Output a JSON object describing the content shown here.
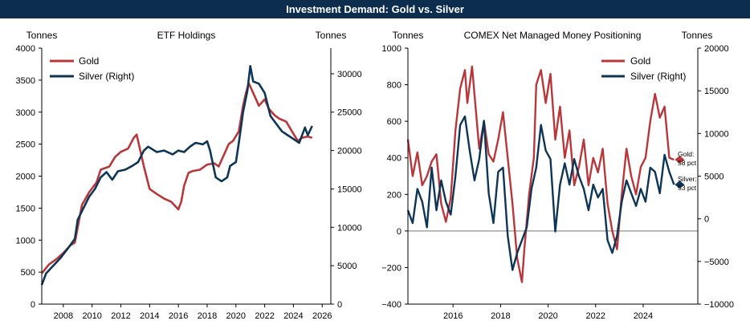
{
  "page_title": "Investment Demand: Gold vs. Silver",
  "colors": {
    "banner": "#0d2d4f",
    "gold": "#b8373b",
    "silver": "#0d3556",
    "zero_line": "#777777"
  },
  "chart_data": [
    {
      "type": "line",
      "title": "ETF Holdings",
      "ylabel_left": "Tonnes",
      "ylabel_right": "Tonnes",
      "xlim": [
        2006.5,
        2026.6
      ],
      "ylim_left": [
        0,
        4000
      ],
      "ylim_right": [
        0,
        33333
      ],
      "x_ticks": [
        2008,
        2010,
        2012,
        2014,
        2016,
        2018,
        2020,
        2022,
        2024,
        2026
      ],
      "y_ticks_left": [
        0,
        500,
        1000,
        1500,
        2000,
        2500,
        3000,
        3500,
        4000
      ],
      "y_ticks_right": [
        0,
        5000,
        10000,
        15000,
        20000,
        25000,
        30000
      ],
      "legend_position": "top-left",
      "series": [
        {
          "name": "Gold",
          "axis": "left",
          "color_key": "gold",
          "points": [
            [
              2006.5,
              480
            ],
            [
              2007.0,
              620
            ],
            [
              2007.5,
              700
            ],
            [
              2008.0,
              800
            ],
            [
              2008.5,
              920
            ],
            [
              2008.8,
              960
            ],
            [
              2009.0,
              1200
            ],
            [
              2009.3,
              1550
            ],
            [
              2009.8,
              1750
            ],
            [
              2010.3,
              1900
            ],
            [
              2010.6,
              2100
            ],
            [
              2011.2,
              2150
            ],
            [
              2011.6,
              2300
            ],
            [
              2012.0,
              2380
            ],
            [
              2012.5,
              2430
            ],
            [
              2012.9,
              2600
            ],
            [
              2013.1,
              2650
            ],
            [
              2013.3,
              2450
            ],
            [
              2013.6,
              2150
            ],
            [
              2014.0,
              1800
            ],
            [
              2014.5,
              1720
            ],
            [
              2015.0,
              1650
            ],
            [
              2015.5,
              1600
            ],
            [
              2016.0,
              1480
            ],
            [
              2016.2,
              1600
            ],
            [
              2016.4,
              1850
            ],
            [
              2016.7,
              2050
            ],
            [
              2017.0,
              2080
            ],
            [
              2017.5,
              2100
            ],
            [
              2018.0,
              2180
            ],
            [
              2018.5,
              2200
            ],
            [
              2018.8,
              2150
            ],
            [
              2019.2,
              2350
            ],
            [
              2019.5,
              2500
            ],
            [
              2019.8,
              2550
            ],
            [
              2020.2,
              2700
            ],
            [
              2020.5,
              3100
            ],
            [
              2020.7,
              3300
            ],
            [
              2020.9,
              3450
            ],
            [
              2021.3,
              3250
            ],
            [
              2021.6,
              3100
            ],
            [
              2022.0,
              3200
            ],
            [
              2022.3,
              3050
            ],
            [
              2022.7,
              2950
            ],
            [
              2023.0,
              2900
            ],
            [
              2023.5,
              2850
            ],
            [
              2023.9,
              2700
            ],
            [
              2024.3,
              2550
            ],
            [
              2024.6,
              2600
            ],
            [
              2025.0,
              2620
            ],
            [
              2025.3,
              2600
            ]
          ]
        },
        {
          "name": "Silver (Right)",
          "axis": "right",
          "color_key": "silver",
          "points": [
            [
              2006.5,
              2500
            ],
            [
              2006.8,
              4000
            ],
            [
              2007.3,
              5000
            ],
            [
              2007.8,
              6000
            ],
            [
              2008.3,
              7200
            ],
            [
              2008.8,
              8500
            ],
            [
              2009.0,
              11000
            ],
            [
              2009.4,
              12500
            ],
            [
              2009.8,
              14000
            ],
            [
              2010.2,
              15000
            ],
            [
              2010.6,
              16500
            ],
            [
              2011.0,
              17200
            ],
            [
              2011.4,
              16200
            ],
            [
              2011.8,
              17300
            ],
            [
              2012.3,
              17500
            ],
            [
              2012.8,
              18000
            ],
            [
              2013.2,
              18500
            ],
            [
              2013.6,
              20000
            ],
            [
              2013.9,
              20500
            ],
            [
              2014.5,
              19800
            ],
            [
              2015.0,
              20000
            ],
            [
              2015.6,
              19500
            ],
            [
              2016.0,
              20000
            ],
            [
              2016.4,
              19800
            ],
            [
              2016.8,
              20500
            ],
            [
              2017.2,
              21000
            ],
            [
              2017.7,
              20800
            ],
            [
              2018.0,
              21200
            ],
            [
              2018.2,
              20000
            ],
            [
              2018.6,
              16500
            ],
            [
              2019.0,
              16000
            ],
            [
              2019.4,
              16500
            ],
            [
              2019.6,
              18000
            ],
            [
              2020.0,
              18500
            ],
            [
              2020.2,
              21000
            ],
            [
              2020.5,
              25000
            ],
            [
              2020.8,
              27800
            ],
            [
              2021.0,
              31000
            ],
            [
              2021.2,
              29000
            ],
            [
              2021.6,
              28700
            ],
            [
              2022.0,
              27500
            ],
            [
              2022.4,
              24500
            ],
            [
              2022.8,
              23500
            ],
            [
              2023.2,
              22500
            ],
            [
              2023.6,
              22000
            ],
            [
              2024.0,
              21500
            ],
            [
              2024.4,
              21000
            ],
            [
              2024.8,
              23000
            ],
            [
              2025.0,
              22000
            ],
            [
              2025.3,
              23200
            ]
          ]
        }
      ]
    },
    {
      "type": "line",
      "title": "COMEX Net Managed Money Positioning",
      "ylabel_left": "Tonnes",
      "ylabel_right": "Tonnes",
      "xlim": [
        2014.1,
        2026.3
      ],
      "ylim_left": [
        -400,
        1000
      ],
      "ylim_right": [
        -10000,
        20000
      ],
      "x_ticks": [
        2016,
        2018,
        2020,
        2022,
        2024
      ],
      "y_ticks_left": [
        -400,
        -200,
        0,
        200,
        400,
        600,
        800,
        1000
      ],
      "y_ticks_right": [
        -10000,
        -5000,
        0,
        5000,
        10000,
        15000,
        20000
      ],
      "legend_position": "top-right",
      "zero_line": 0,
      "series": [
        {
          "name": "Gold",
          "axis": "left",
          "color_key": "gold",
          "end_label": "Gold: 58 pct",
          "points": [
            [
              2014.1,
              500
            ],
            [
              2014.3,
              300
            ],
            [
              2014.5,
              430
            ],
            [
              2014.7,
              250
            ],
            [
              2014.9,
              300
            ],
            [
              2015.1,
              380
            ],
            [
              2015.3,
              420
            ],
            [
              2015.5,
              150
            ],
            [
              2015.7,
              50
            ],
            [
              2015.9,
              180
            ],
            [
              2016.1,
              550
            ],
            [
              2016.3,
              780
            ],
            [
              2016.5,
              880
            ],
            [
              2016.6,
              700
            ],
            [
              2016.8,
              900
            ],
            [
              2017.0,
              600
            ],
            [
              2017.1,
              450
            ],
            [
              2017.3,
              600
            ],
            [
              2017.5,
              420
            ],
            [
              2017.7,
              380
            ],
            [
              2017.9,
              500
            ],
            [
              2018.1,
              650
            ],
            [
              2018.3,
              400
            ],
            [
              2018.5,
              150
            ],
            [
              2018.7,
              -150
            ],
            [
              2018.9,
              -280
            ],
            [
              2019.0,
              -100
            ],
            [
              2019.2,
              200
            ],
            [
              2019.4,
              400
            ],
            [
              2019.5,
              800
            ],
            [
              2019.7,
              880
            ],
            [
              2019.9,
              700
            ],
            [
              2020.1,
              860
            ],
            [
              2020.3,
              500
            ],
            [
              2020.5,
              680
            ],
            [
              2020.7,
              400
            ],
            [
              2020.9,
              550
            ],
            [
              2021.1,
              250
            ],
            [
              2021.3,
              350
            ],
            [
              2021.5,
              500
            ],
            [
              2021.7,
              250
            ],
            [
              2021.9,
              400
            ],
            [
              2022.1,
              320
            ],
            [
              2022.3,
              450
            ],
            [
              2022.5,
              150
            ],
            [
              2022.7,
              0
            ],
            [
              2022.9,
              -100
            ],
            [
              2023.1,
              200
            ],
            [
              2023.3,
              450
            ],
            [
              2023.5,
              300
            ],
            [
              2023.7,
              200
            ],
            [
              2023.9,
              350
            ],
            [
              2024.1,
              400
            ],
            [
              2024.3,
              600
            ],
            [
              2024.5,
              750
            ],
            [
              2024.7,
              620
            ],
            [
              2024.9,
              680
            ],
            [
              2025.1,
              400
            ],
            [
              2025.3,
              390
            ]
          ]
        },
        {
          "name": "Silver (Right)",
          "axis": "right",
          "color_key": "silver",
          "end_label": "Silver: 53 pct",
          "points": [
            [
              2014.1,
              1000
            ],
            [
              2014.3,
              -500
            ],
            [
              2014.5,
              3500
            ],
            [
              2014.7,
              2000
            ],
            [
              2014.9,
              -1000
            ],
            [
              2015.1,
              6000
            ],
            [
              2015.3,
              1000
            ],
            [
              2015.5,
              4500
            ],
            [
              2015.7,
              2000
            ],
            [
              2015.9,
              500
            ],
            [
              2016.1,
              5000
            ],
            [
              2016.3,
              11000
            ],
            [
              2016.5,
              12000
            ],
            [
              2016.7,
              8000
            ],
            [
              2016.9,
              4500
            ],
            [
              2017.1,
              7000
            ],
            [
              2017.3,
              11500
            ],
            [
              2017.5,
              3000
            ],
            [
              2017.7,
              -500
            ],
            [
              2017.9,
              5500
            ],
            [
              2018.1,
              6000
            ],
            [
              2018.3,
              -2000
            ],
            [
              2018.5,
              -6000
            ],
            [
              2018.7,
              -4000
            ],
            [
              2018.9,
              -2500
            ],
            [
              2019.1,
              -1000
            ],
            [
              2019.3,
              3500
            ],
            [
              2019.5,
              6000
            ],
            [
              2019.7,
              11000
            ],
            [
              2019.9,
              8000
            ],
            [
              2020.1,
              7000
            ],
            [
              2020.3,
              -1500
            ],
            [
              2020.5,
              4000
            ],
            [
              2020.7,
              6500
            ],
            [
              2020.9,
              4000
            ],
            [
              2021.1,
              7000
            ],
            [
              2021.3,
              5000
            ],
            [
              2021.5,
              3500
            ],
            [
              2021.7,
              1000
            ],
            [
              2021.9,
              4000
            ],
            [
              2022.1,
              2500
            ],
            [
              2022.3,
              3500
            ],
            [
              2022.5,
              -2500
            ],
            [
              2022.7,
              -4000
            ],
            [
              2022.9,
              -2000
            ],
            [
              2023.1,
              2000
            ],
            [
              2023.3,
              4500
            ],
            [
              2023.5,
              3000
            ],
            [
              2023.7,
              1500
            ],
            [
              2023.9,
              3500
            ],
            [
              2024.1,
              2000
            ],
            [
              2024.3,
              6000
            ],
            [
              2024.5,
              5500
            ],
            [
              2024.7,
              3000
            ],
            [
              2024.9,
              7500
            ],
            [
              2025.1,
              5500
            ],
            [
              2025.3,
              4000
            ]
          ]
        }
      ]
    }
  ]
}
